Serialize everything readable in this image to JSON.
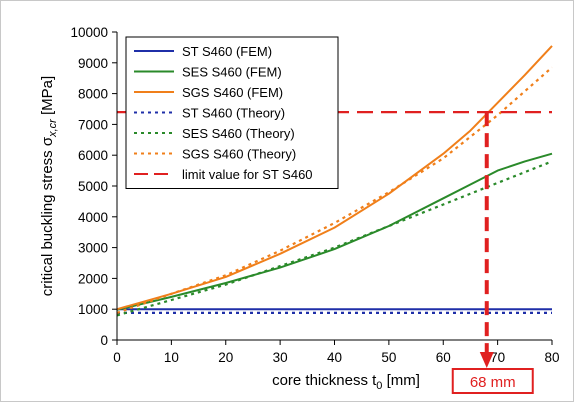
{
  "chart_data": {
    "type": "line",
    "xlabel": "core thickness t",
    "xlabel_sub": "0",
    "xlabel_unit": " [mm]",
    "ylabel": "critical buckling stress σ",
    "ylabel_sub": "x,cr",
    "ylabel_unit": " [MPa]",
    "xlim": [
      0,
      80
    ],
    "ylim": [
      0,
      10000
    ],
    "x_ticks": [
      0,
      10,
      20,
      30,
      40,
      50,
      60,
      70,
      80
    ],
    "y_ticks": [
      0,
      1000,
      2000,
      3000,
      4000,
      5000,
      6000,
      7000,
      8000,
      9000,
      10000
    ],
    "grid": false,
    "legend_position": "top-left",
    "series": [
      {
        "name": "ST S460 (FEM)",
        "style": "solid",
        "color": "#1f2fa8",
        "x": [
          0,
          80
        ],
        "y": [
          1000,
          1000
        ]
      },
      {
        "name": "SES S460 (FEM)",
        "style": "solid",
        "color": "#2a8a2a",
        "x": [
          0,
          10,
          20,
          30,
          40,
          50,
          60,
          65,
          70,
          75,
          80
        ],
        "y": [
          980,
          1400,
          1850,
          2350,
          2950,
          3700,
          4600,
          5050,
          5500,
          5800,
          6050
        ]
      },
      {
        "name": "SGS S460 (FEM)",
        "style": "solid",
        "color": "#f07f1a",
        "x": [
          0,
          10,
          20,
          30,
          40,
          50,
          60,
          65,
          70,
          75,
          80
        ],
        "y": [
          1000,
          1500,
          2050,
          2800,
          3650,
          4750,
          6050,
          6800,
          7700,
          8600,
          9550
        ]
      },
      {
        "name": "ST S460 (Theory)",
        "style": "dotted",
        "color": "#1f2fa8",
        "x": [
          0,
          80
        ],
        "y": [
          880,
          880
        ]
      },
      {
        "name": "SES S460 (Theory)",
        "style": "dotted",
        "color": "#2a8a2a",
        "x": [
          0,
          10,
          20,
          30,
          40,
          50,
          60,
          70,
          80
        ],
        "y": [
          800,
          1300,
          1800,
          2400,
          3000,
          3700,
          4400,
          5100,
          5800
        ]
      },
      {
        "name": "SGS S460 (Theory)",
        "style": "dotted",
        "color": "#f07f1a",
        "x": [
          0,
          10,
          20,
          30,
          40,
          50,
          60,
          70,
          80
        ],
        "y": [
          880,
          1500,
          2100,
          2900,
          3800,
          4800,
          5900,
          7300,
          8850
        ]
      },
      {
        "name": "limit value for ST S460",
        "style": "dashed",
        "color": "#e02020",
        "x": [
          0,
          80
        ],
        "y": [
          7400,
          7400
        ]
      }
    ],
    "annotation": {
      "x": 68,
      "y": 7400,
      "label": "68 mm",
      "color": "#e02020"
    }
  }
}
